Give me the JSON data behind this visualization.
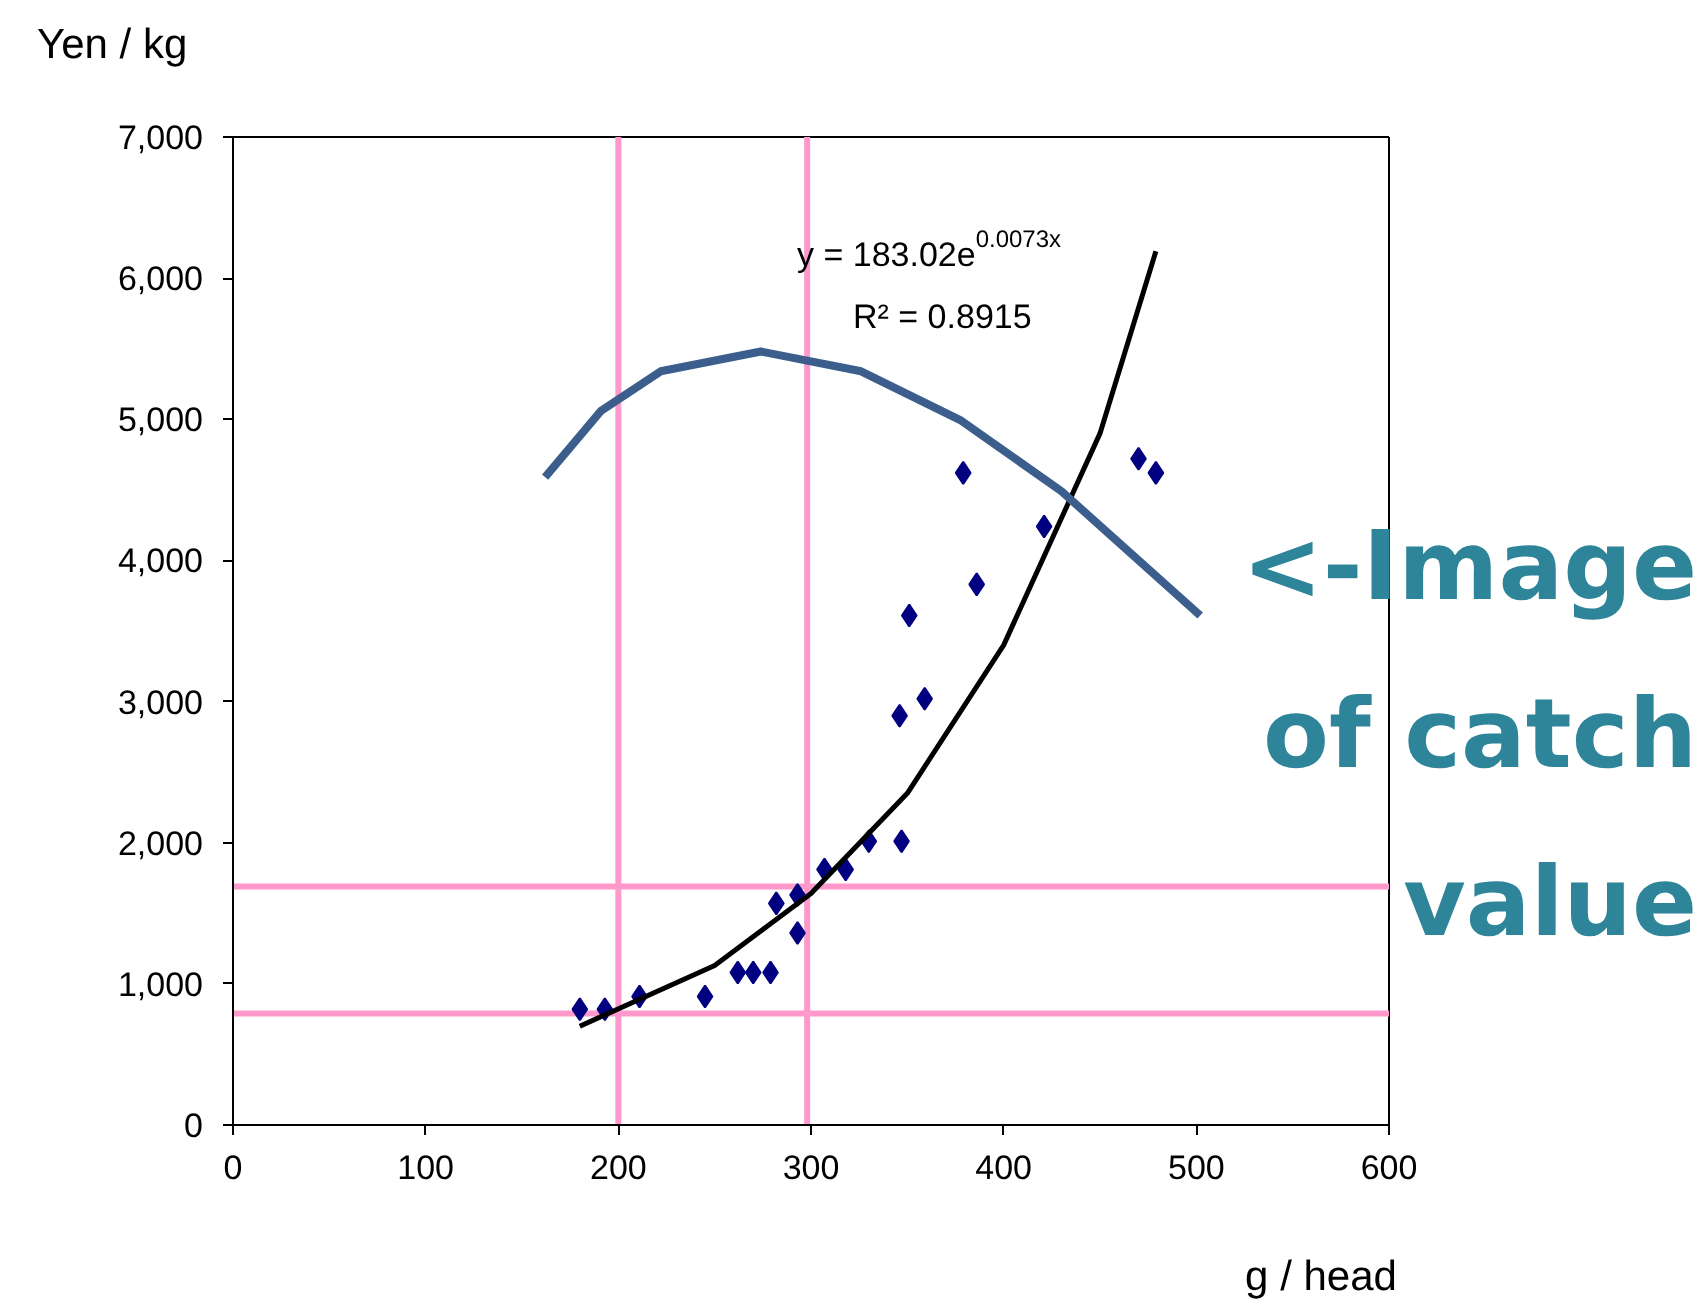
{
  "chart_data": {
    "type": "scatter",
    "xlabel": "g / head",
    "ylabel": "Yen / kg",
    "xlim": [
      0,
      600
    ],
    "ylim": [
      0,
      7000
    ],
    "xticks": [
      0,
      100,
      200,
      300,
      400,
      500,
      600
    ],
    "yticks": [
      0,
      {
        "value": 1000,
        "label": "1,000"
      },
      {
        "value": 2000,
        "label": "2,000"
      },
      {
        "value": 3000,
        "label": "3,000"
      },
      {
        "value": 4000,
        "label": "4,000"
      },
      {
        "value": 5000,
        "label": "5,000"
      },
      {
        "value": 6000,
        "label": "6,000"
      },
      {
        "value": 7000,
        "label": "7,000"
      }
    ],
    "grid": false,
    "series": [
      {
        "color": "#000080",
        "marker": "diamond",
        "x": [
          180,
          193,
          211,
          245,
          262,
          270,
          279,
          282,
          293,
          293,
          307,
          318,
          330,
          347,
          346,
          359,
          351,
          386,
          379,
          421,
          470,
          479
        ],
        "values": [
          820,
          820,
          910,
          910,
          1080,
          1080,
          1080,
          1570,
          1630,
          1360,
          1810,
          1810,
          2010,
          2010,
          2900,
          3020,
          3610,
          3830,
          4620,
          4240,
          4720,
          4620
        ]
      },
      {
        "type": "line",
        "color": "#000000",
        "x": [
          180,
          250,
          300,
          350,
          400,
          450,
          479
        ],
        "values": [
          700,
          1130,
          1640,
          2350,
          3400,
          4900,
          6190
        ]
      },
      {
        "type": "line",
        "color": "#3b5e8c",
        "x": [
          162,
          191,
          222,
          274,
          326,
          378,
          430,
          502
        ],
        "values": [
          4590,
          5060,
          5340,
          5480,
          5340,
          4990,
          4490,
          3610
        ]
      }
    ],
    "ref_lines": [
      {
        "axis": "y",
        "value": 1690,
        "color": "#ff99cc"
      },
      {
        "axis": "y",
        "value": 790,
        "color": "#ff99cc"
      },
      {
        "axis": "x",
        "value": 200,
        "color": "#ff99cc"
      },
      {
        "axis": "x",
        "value": 298,
        "color": "#ff99cc"
      }
    ],
    "annotations": [
      "y = 183.02e$^{0.0073x}$",
      "R² = 0.8915",
      "<-Image\nof catch\nvalue"
    ]
  }
}
